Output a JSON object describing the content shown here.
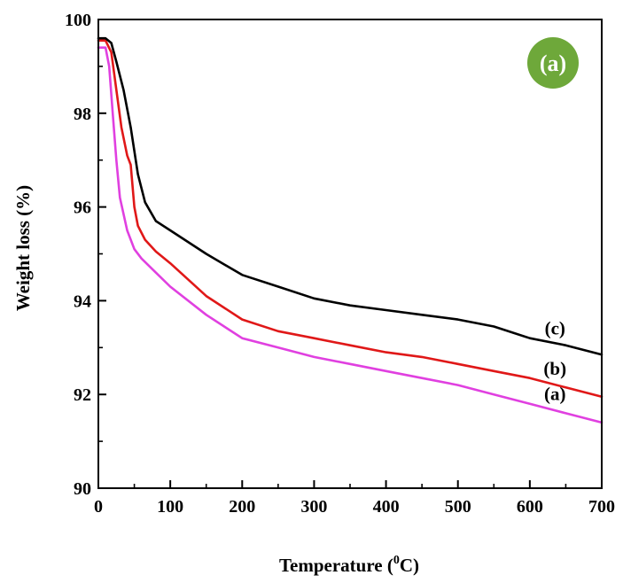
{
  "chart_data": {
    "type": "line",
    "title": "",
    "xlabel": "Temperature (",
    "xlabel_sup": "0",
    "xlabel_end": "C)",
    "ylabel": "Weight loss (%)",
    "xlim": [
      0,
      700
    ],
    "ylim": [
      90,
      100
    ],
    "x_ticks": [
      0,
      100,
      200,
      300,
      400,
      500,
      600,
      700
    ],
    "y_ticks": [
      90,
      92,
      94,
      96,
      98,
      100
    ],
    "x_tick_labels": [
      "0",
      "100",
      "200",
      "300",
      "400",
      "500",
      "600",
      "700"
    ],
    "y_tick_labels": [
      "90",
      "92",
      "94",
      "96",
      "98",
      "100"
    ],
    "grid": false,
    "panel_label": "(a)",
    "panel_badge_color": "#6ea83a",
    "series": [
      {
        "label": "(a)",
        "color": "#e040e0",
        "x": [
          0,
          10,
          15,
          20,
          25,
          30,
          40,
          50,
          60,
          80,
          100,
          150,
          200,
          250,
          300,
          350,
          400,
          450,
          500,
          550,
          600,
          650,
          700
        ],
        "y": [
          99.4,
          99.4,
          99.0,
          98.0,
          97.0,
          96.2,
          95.5,
          95.1,
          94.9,
          94.6,
          94.3,
          93.7,
          93.2,
          93.0,
          92.8,
          92.65,
          92.5,
          92.35,
          92.2,
          92.0,
          91.8,
          91.6,
          91.4
        ]
      },
      {
        "label": "(b)",
        "color": "#e01818",
        "x": [
          0,
          10,
          18,
          25,
          32,
          40,
          45,
          50,
          55,
          65,
          80,
          100,
          150,
          200,
          250,
          300,
          350,
          400,
          450,
          500,
          550,
          600,
          650,
          700
        ],
        "y": [
          99.55,
          99.55,
          99.3,
          98.5,
          97.7,
          97.1,
          96.9,
          96.0,
          95.6,
          95.3,
          95.05,
          94.8,
          94.1,
          93.6,
          93.35,
          93.2,
          93.05,
          92.9,
          92.8,
          92.65,
          92.5,
          92.35,
          92.15,
          91.95
        ]
      },
      {
        "label": "(c)",
        "color": "#000000",
        "x": [
          0,
          10,
          18,
          25,
          35,
          45,
          55,
          65,
          80,
          100,
          150,
          200,
          250,
          300,
          350,
          400,
          450,
          500,
          550,
          600,
          650,
          700
        ],
        "y": [
          99.6,
          99.6,
          99.5,
          99.1,
          98.5,
          97.7,
          96.7,
          96.1,
          95.7,
          95.5,
          95.0,
          94.55,
          94.3,
          94.05,
          93.9,
          93.8,
          93.7,
          93.6,
          93.45,
          93.2,
          93.05,
          92.85
        ]
      }
    ],
    "legend": [
      {
        "text": "(c)",
        "x": 635,
        "y": 93.28
      },
      {
        "text": "(b)",
        "x": 635,
        "y": 92.42
      },
      {
        "text": "(a)",
        "x": 635,
        "y": 91.88
      }
    ]
  }
}
